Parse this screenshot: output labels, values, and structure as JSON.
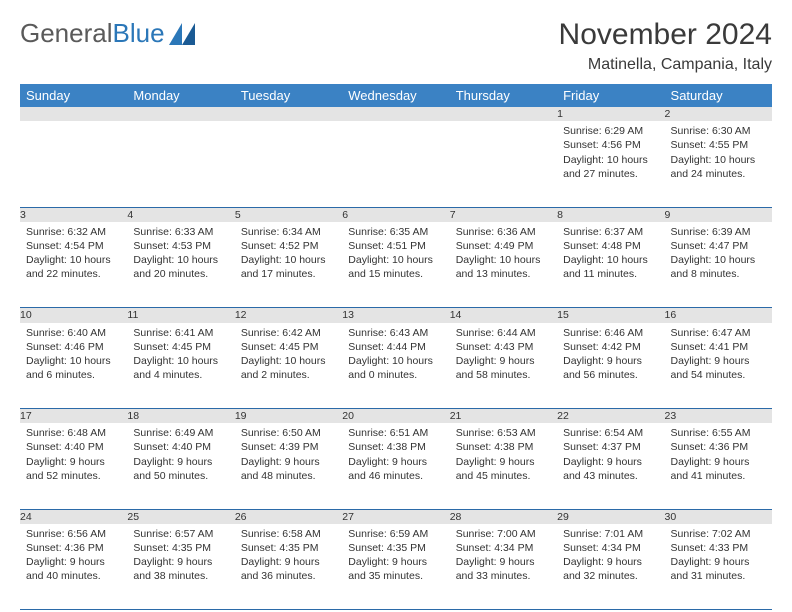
{
  "brand": {
    "word1": "General",
    "word2": "Blue"
  },
  "title": "November 2024",
  "location": "Matinella, Campania, Italy",
  "colors": {
    "header_bg": "#3b82c4",
    "header_text": "#ffffff",
    "daynum_bg": "#e4e4e4",
    "row_divider": "#2b6aa8",
    "body_text": "#333333",
    "logo_gray": "#5a5a5a",
    "logo_blue": "#2b77b8"
  },
  "weekdays": [
    "Sunday",
    "Monday",
    "Tuesday",
    "Wednesday",
    "Thursday",
    "Friday",
    "Saturday"
  ],
  "weeks": [
    [
      null,
      null,
      null,
      null,
      null,
      {
        "day": "1",
        "sunrise": "Sunrise: 6:29 AM",
        "sunset": "Sunset: 4:56 PM",
        "daylight": "Daylight: 10 hours and 27 minutes."
      },
      {
        "day": "2",
        "sunrise": "Sunrise: 6:30 AM",
        "sunset": "Sunset: 4:55 PM",
        "daylight": "Daylight: 10 hours and 24 minutes."
      }
    ],
    [
      {
        "day": "3",
        "sunrise": "Sunrise: 6:32 AM",
        "sunset": "Sunset: 4:54 PM",
        "daylight": "Daylight: 10 hours and 22 minutes."
      },
      {
        "day": "4",
        "sunrise": "Sunrise: 6:33 AM",
        "sunset": "Sunset: 4:53 PM",
        "daylight": "Daylight: 10 hours and 20 minutes."
      },
      {
        "day": "5",
        "sunrise": "Sunrise: 6:34 AM",
        "sunset": "Sunset: 4:52 PM",
        "daylight": "Daylight: 10 hours and 17 minutes."
      },
      {
        "day": "6",
        "sunrise": "Sunrise: 6:35 AM",
        "sunset": "Sunset: 4:51 PM",
        "daylight": "Daylight: 10 hours and 15 minutes."
      },
      {
        "day": "7",
        "sunrise": "Sunrise: 6:36 AM",
        "sunset": "Sunset: 4:49 PM",
        "daylight": "Daylight: 10 hours and 13 minutes."
      },
      {
        "day": "8",
        "sunrise": "Sunrise: 6:37 AM",
        "sunset": "Sunset: 4:48 PM",
        "daylight": "Daylight: 10 hours and 11 minutes."
      },
      {
        "day": "9",
        "sunrise": "Sunrise: 6:39 AM",
        "sunset": "Sunset: 4:47 PM",
        "daylight": "Daylight: 10 hours and 8 minutes."
      }
    ],
    [
      {
        "day": "10",
        "sunrise": "Sunrise: 6:40 AM",
        "sunset": "Sunset: 4:46 PM",
        "daylight": "Daylight: 10 hours and 6 minutes."
      },
      {
        "day": "11",
        "sunrise": "Sunrise: 6:41 AM",
        "sunset": "Sunset: 4:45 PM",
        "daylight": "Daylight: 10 hours and 4 minutes."
      },
      {
        "day": "12",
        "sunrise": "Sunrise: 6:42 AM",
        "sunset": "Sunset: 4:45 PM",
        "daylight": "Daylight: 10 hours and 2 minutes."
      },
      {
        "day": "13",
        "sunrise": "Sunrise: 6:43 AM",
        "sunset": "Sunset: 4:44 PM",
        "daylight": "Daylight: 10 hours and 0 minutes."
      },
      {
        "day": "14",
        "sunrise": "Sunrise: 6:44 AM",
        "sunset": "Sunset: 4:43 PM",
        "daylight": "Daylight: 9 hours and 58 minutes."
      },
      {
        "day": "15",
        "sunrise": "Sunrise: 6:46 AM",
        "sunset": "Sunset: 4:42 PM",
        "daylight": "Daylight: 9 hours and 56 minutes."
      },
      {
        "day": "16",
        "sunrise": "Sunrise: 6:47 AM",
        "sunset": "Sunset: 4:41 PM",
        "daylight": "Daylight: 9 hours and 54 minutes."
      }
    ],
    [
      {
        "day": "17",
        "sunrise": "Sunrise: 6:48 AM",
        "sunset": "Sunset: 4:40 PM",
        "daylight": "Daylight: 9 hours and 52 minutes."
      },
      {
        "day": "18",
        "sunrise": "Sunrise: 6:49 AM",
        "sunset": "Sunset: 4:40 PM",
        "daylight": "Daylight: 9 hours and 50 minutes."
      },
      {
        "day": "19",
        "sunrise": "Sunrise: 6:50 AM",
        "sunset": "Sunset: 4:39 PM",
        "daylight": "Daylight: 9 hours and 48 minutes."
      },
      {
        "day": "20",
        "sunrise": "Sunrise: 6:51 AM",
        "sunset": "Sunset: 4:38 PM",
        "daylight": "Daylight: 9 hours and 46 minutes."
      },
      {
        "day": "21",
        "sunrise": "Sunrise: 6:53 AM",
        "sunset": "Sunset: 4:38 PM",
        "daylight": "Daylight: 9 hours and 45 minutes."
      },
      {
        "day": "22",
        "sunrise": "Sunrise: 6:54 AM",
        "sunset": "Sunset: 4:37 PM",
        "daylight": "Daylight: 9 hours and 43 minutes."
      },
      {
        "day": "23",
        "sunrise": "Sunrise: 6:55 AM",
        "sunset": "Sunset: 4:36 PM",
        "daylight": "Daylight: 9 hours and 41 minutes."
      }
    ],
    [
      {
        "day": "24",
        "sunrise": "Sunrise: 6:56 AM",
        "sunset": "Sunset: 4:36 PM",
        "daylight": "Daylight: 9 hours and 40 minutes."
      },
      {
        "day": "25",
        "sunrise": "Sunrise: 6:57 AM",
        "sunset": "Sunset: 4:35 PM",
        "daylight": "Daylight: 9 hours and 38 minutes."
      },
      {
        "day": "26",
        "sunrise": "Sunrise: 6:58 AM",
        "sunset": "Sunset: 4:35 PM",
        "daylight": "Daylight: 9 hours and 36 minutes."
      },
      {
        "day": "27",
        "sunrise": "Sunrise: 6:59 AM",
        "sunset": "Sunset: 4:35 PM",
        "daylight": "Daylight: 9 hours and 35 minutes."
      },
      {
        "day": "28",
        "sunrise": "Sunrise: 7:00 AM",
        "sunset": "Sunset: 4:34 PM",
        "daylight": "Daylight: 9 hours and 33 minutes."
      },
      {
        "day": "29",
        "sunrise": "Sunrise: 7:01 AM",
        "sunset": "Sunset: 4:34 PM",
        "daylight": "Daylight: 9 hours and 32 minutes."
      },
      {
        "day": "30",
        "sunrise": "Sunrise: 7:02 AM",
        "sunset": "Sunset: 4:33 PM",
        "daylight": "Daylight: 9 hours and 31 minutes."
      }
    ]
  ]
}
